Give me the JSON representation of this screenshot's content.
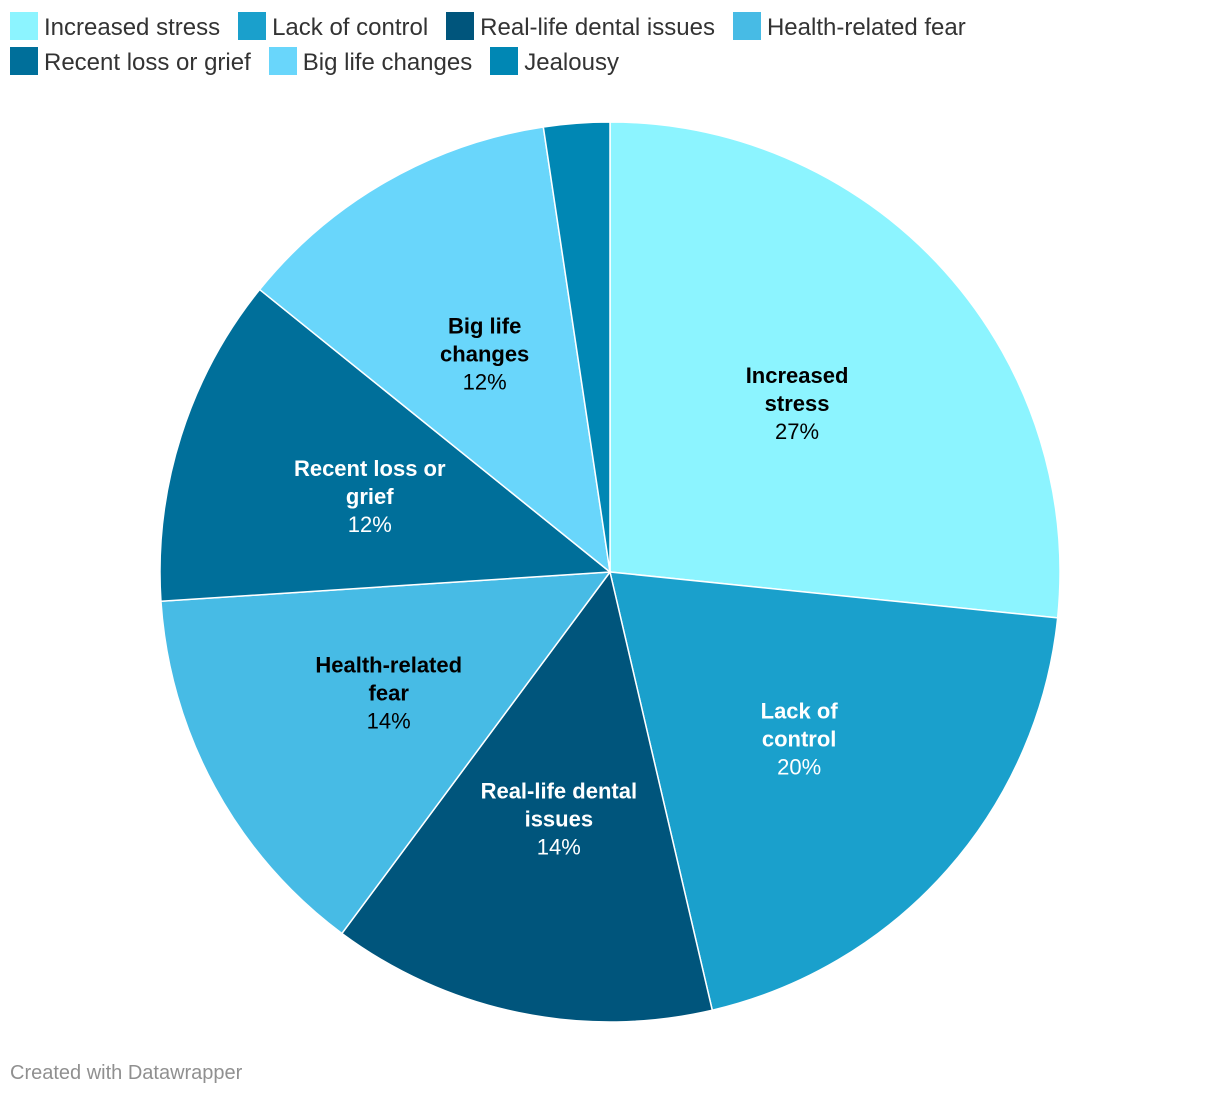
{
  "chart_data": {
    "type": "pie",
    "start_angle_deg": 0,
    "direction": "clockwise",
    "slices": [
      {
        "name": "Increased stress",
        "label_lines": [
          "Increased",
          "stress"
        ],
        "value": 27,
        "value_label": "27%",
        "color": "#8cf4ff",
        "text_color": "#000000"
      },
      {
        "name": "Lack of control",
        "label_lines": [
          "Lack of",
          "control"
        ],
        "value": 20,
        "value_label": "20%",
        "color": "#1aa0cc",
        "text_color": "#ffffff"
      },
      {
        "name": "Real-life dental issues",
        "label_lines": [
          "Real-life dental",
          "issues"
        ],
        "value": 14,
        "value_label": "14%",
        "color": "#00557c",
        "text_color": "#ffffff"
      },
      {
        "name": "Health-related fear",
        "label_lines": [
          "Health-related",
          "fear"
        ],
        "value": 14,
        "value_label": "14%",
        "color": "#47bbe5",
        "text_color": "#000000"
      },
      {
        "name": "Recent loss or grief",
        "label_lines": [
          "Recent loss or",
          "grief"
        ],
        "value": 12,
        "value_label": "12%",
        "color": "#006f9a",
        "text_color": "#ffffff"
      },
      {
        "name": "Big life changes",
        "label_lines": [
          "Big life",
          "changes"
        ],
        "value": 12,
        "value_label": "12%",
        "color": "#69d6fb",
        "text_color": "#000000"
      },
      {
        "name": "Jealousy",
        "label_lines": [],
        "value": 2.4,
        "value_label": "",
        "color": "#0087b4",
        "text_color": "#ffffff"
      }
    ]
  },
  "legend": {
    "items": [
      {
        "label": "Increased stress",
        "color": "#8cf4ff"
      },
      {
        "label": "Lack of control",
        "color": "#1aa0cc"
      },
      {
        "label": "Real-life dental issues",
        "color": "#00557c"
      },
      {
        "label": "Health-related fear",
        "color": "#47bbe5"
      },
      {
        "label": "Recent loss or grief",
        "color": "#006f9a"
      },
      {
        "label": "Big life changes",
        "color": "#69d6fb"
      },
      {
        "label": "Jealousy",
        "color": "#0087b4"
      }
    ]
  },
  "footer": {
    "credit": "Created with Datawrapper"
  }
}
